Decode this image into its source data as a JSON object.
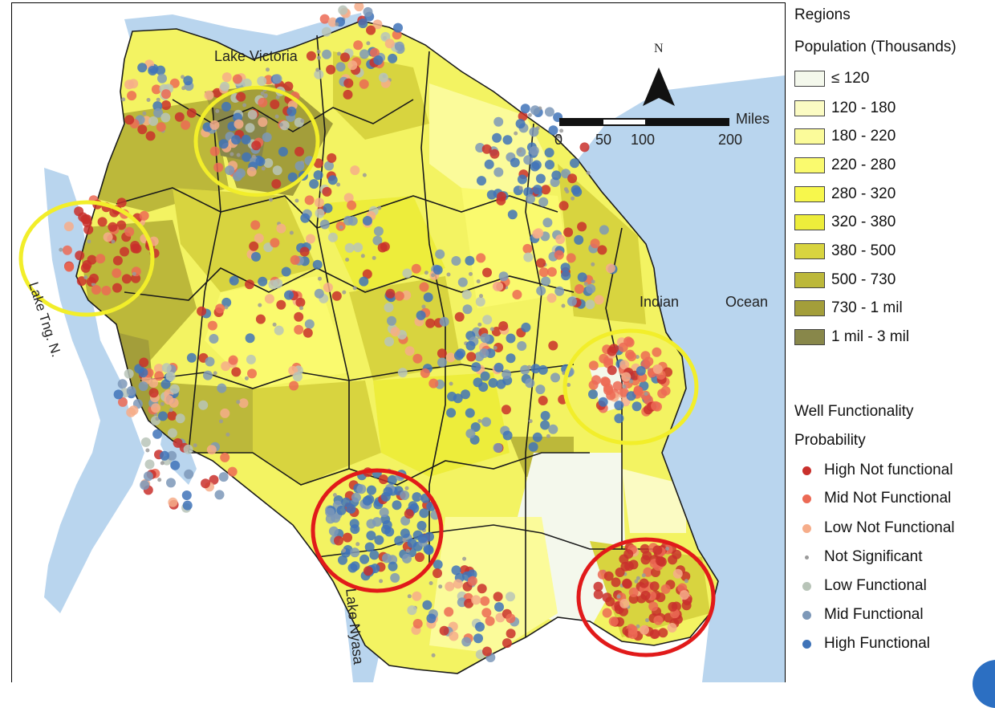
{
  "map": {
    "labels": {
      "lake_victoria": "Lake Victoria",
      "lake_tanganyika": "Lake Tng. N.",
      "lake_nyasa": "Lake Nyasa",
      "indian": "Indian",
      "ocean": "Ocean",
      "north": "N"
    },
    "scalebar": {
      "ticks": [
        "0",
        "50",
        "100",
        "200"
      ],
      "unit": "Miles"
    },
    "colors": {
      "water": "#b9d5ee",
      "land_base": "#f3f362",
      "boundary": "#1a1a1a",
      "yellow_circle": "#f2ee2a",
      "red_circle": "#e11a1a"
    },
    "highlight_circles": [
      {
        "color": "yellow"
      },
      {
        "color": "yellow"
      },
      {
        "color": "yellow"
      },
      {
        "color": "red"
      },
      {
        "color": "red"
      }
    ]
  },
  "legend": {
    "regions_title": "Regions",
    "population_title": "Population (Thousands)",
    "population_classes": [
      {
        "label": "≤ 120",
        "color": "#f4f8ec"
      },
      {
        "label": "120 - 180",
        "color": "#fbfbc3"
      },
      {
        "label": "180 - 220",
        "color": "#fbfb9a"
      },
      {
        "label": "220 - 280",
        "color": "#fafa6e"
      },
      {
        "label": "280 - 320",
        "color": "#f7f74c"
      },
      {
        "label": "320 - 380",
        "color": "#eded3b"
      },
      {
        "label": "380 - 500",
        "color": "#d8d43f"
      },
      {
        "label": "500 - 730",
        "color": "#bcb83a"
      },
      {
        "label": "730 - 1 mil",
        "color": "#a39e3a"
      },
      {
        "label": "1 mil - 3 mil",
        "color": "#88874a"
      }
    ],
    "well_title": "Well Functionality",
    "probability_title": "Probability",
    "well_classes": [
      {
        "label": "High Not functional",
        "color": "#c9302c"
      },
      {
        "label": "Mid Not Functional",
        "color": "#ec6a55"
      },
      {
        "label": "Low Not Functional",
        "color": "#f6ad8a"
      },
      {
        "label": "Not Significant",
        "color": "#9a9a9a"
      },
      {
        "label": "Low Functional",
        "color": "#b8c4b8"
      },
      {
        "label": "Mid Functional",
        "color": "#7d98b8"
      },
      {
        "label": "High Functional",
        "color": "#3f73b8"
      }
    ]
  }
}
